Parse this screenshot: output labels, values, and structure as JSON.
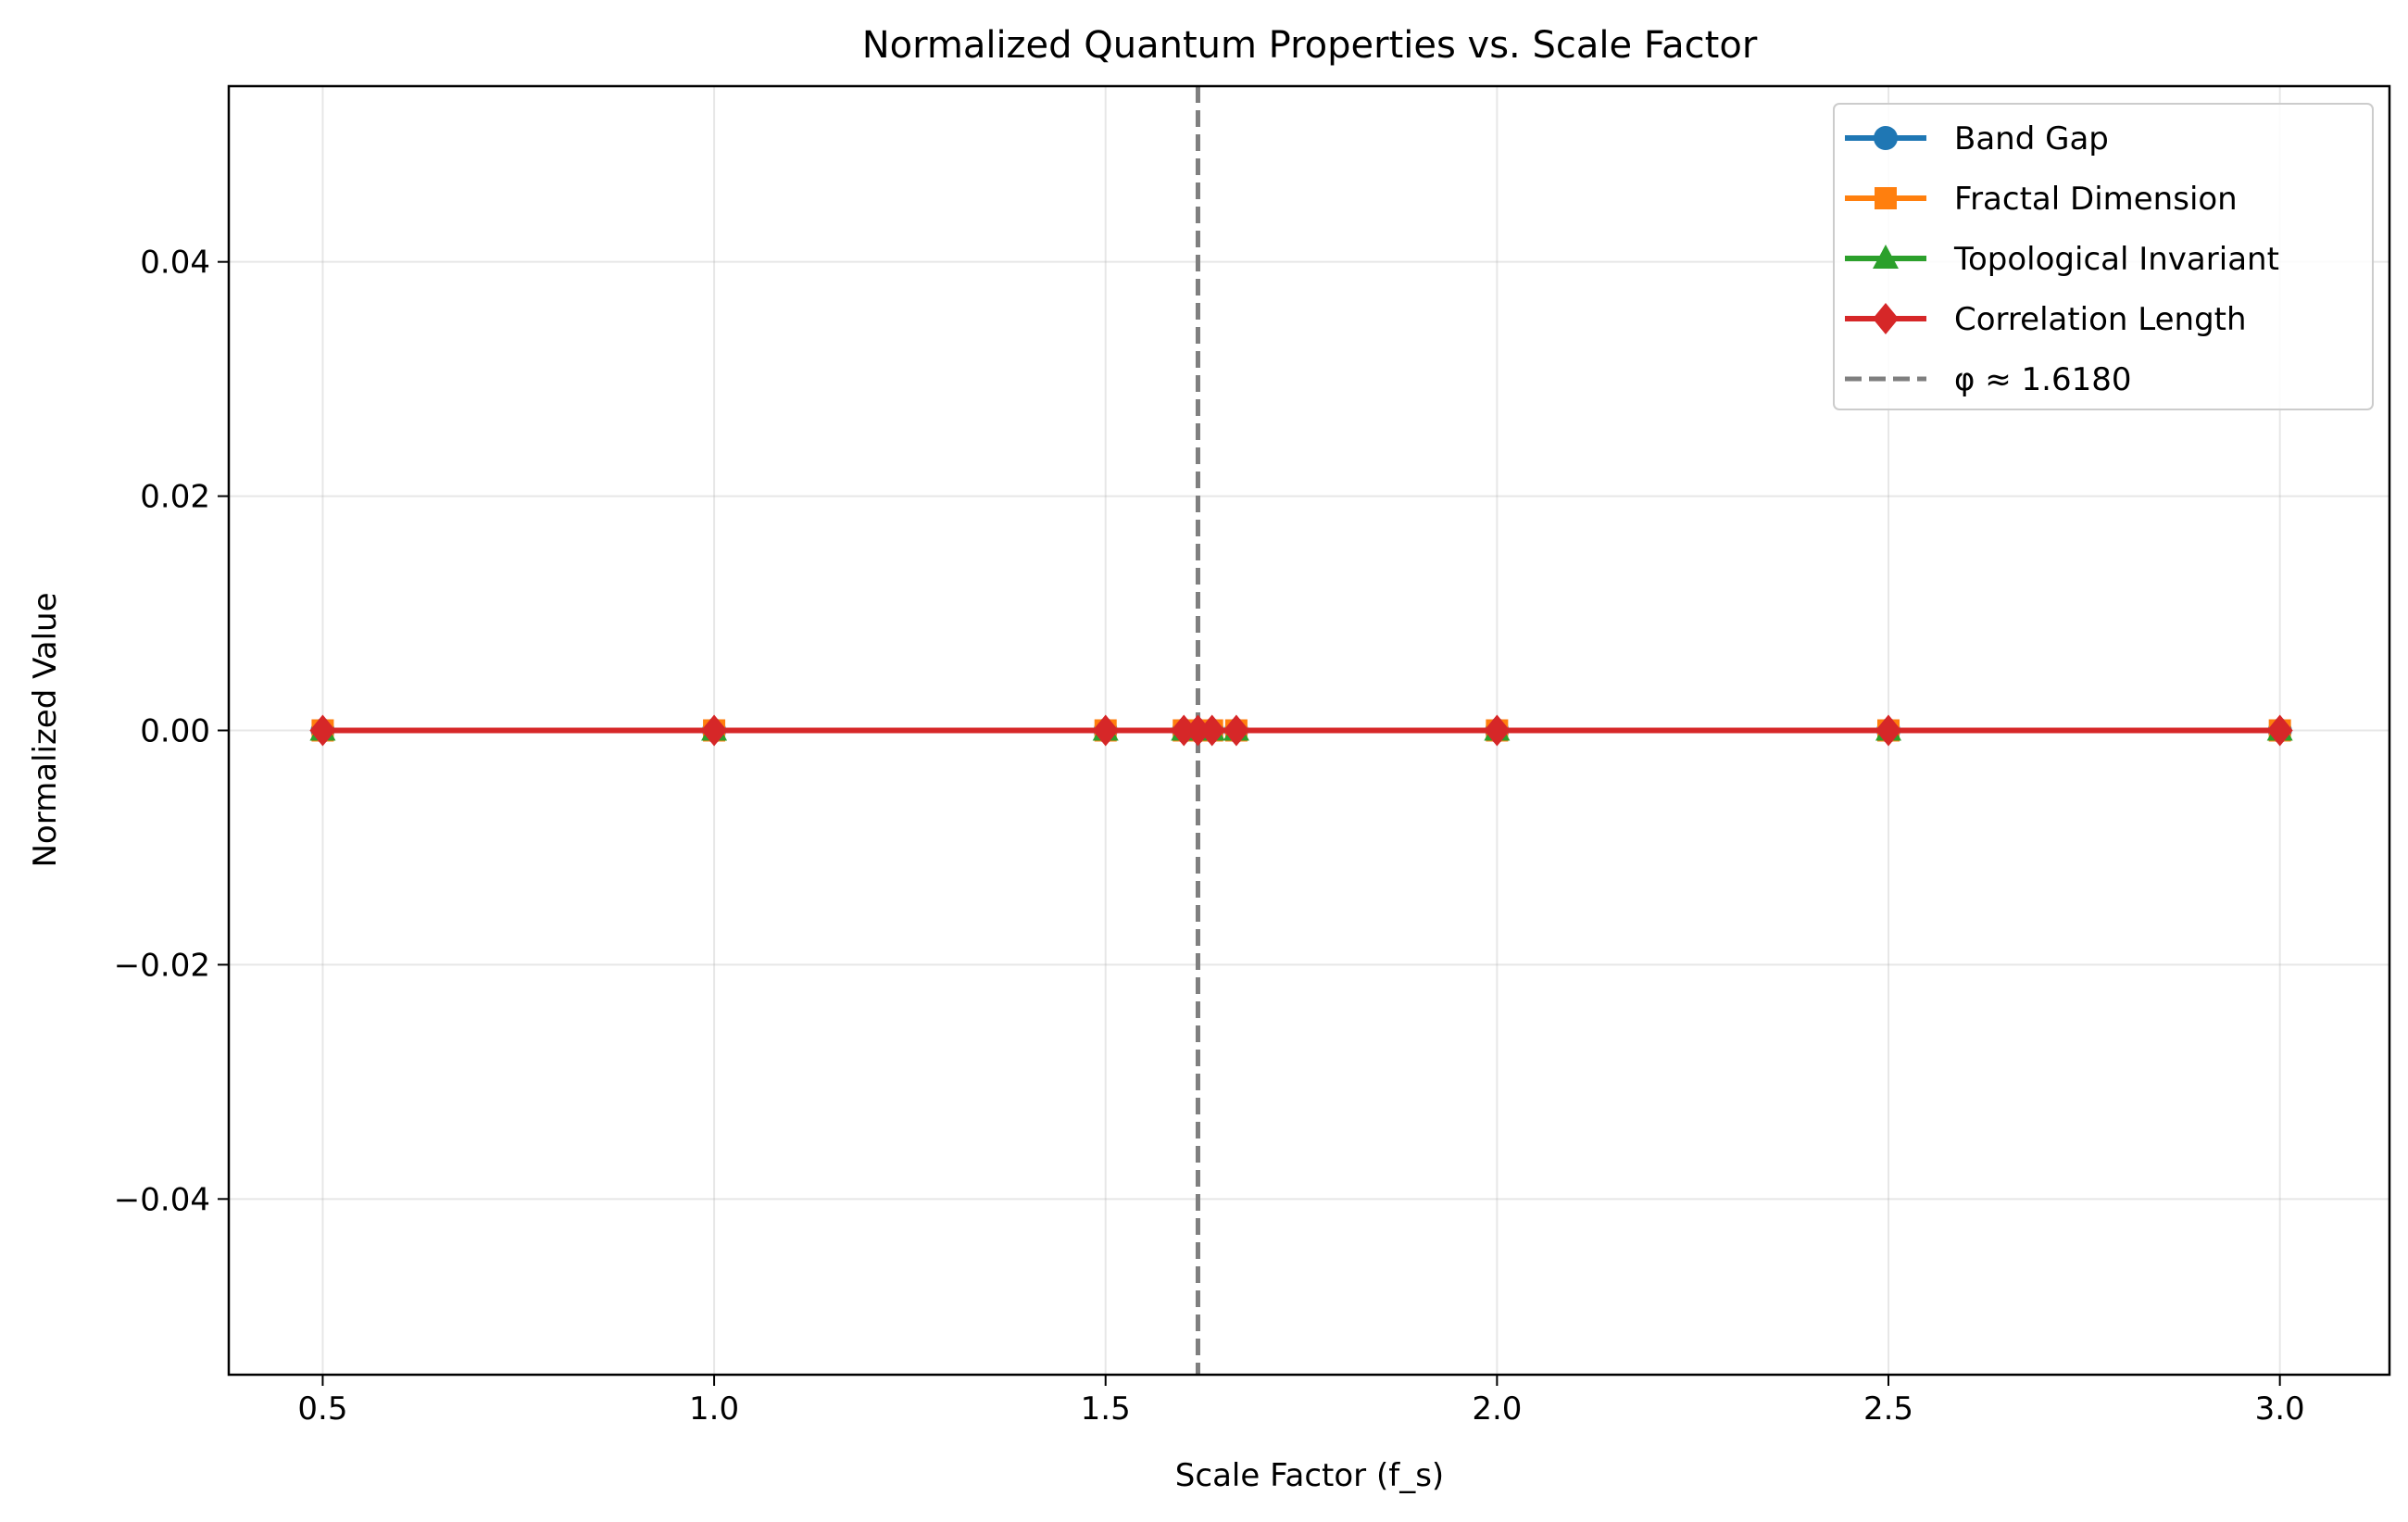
{
  "chart_data": {
    "type": "line",
    "title": "Normalized Quantum Properties vs. Scale Factor",
    "xlabel": "Scale Factor (f_s)",
    "ylabel": "Normalized Value",
    "xlim": [
      0.38,
      3.14
    ],
    "ylim": [
      -0.055,
      0.055
    ],
    "x_ticks": [
      0.5,
      1.0,
      1.5,
      2.0,
      2.5,
      3.0
    ],
    "x_tick_labels": [
      "0.5",
      "1.0",
      "1.5",
      "2.0",
      "2.5",
      "3.0"
    ],
    "y_ticks": [
      -0.04,
      -0.02,
      0.0,
      0.02,
      0.04
    ],
    "y_tick_labels": [
      "−0.04",
      "−0.02",
      "0.00",
      "0.02",
      "0.04"
    ],
    "grid": true,
    "legend_position": "top-right",
    "x": [
      0.5,
      1.0,
      1.5,
      1.6,
      1.618,
      1.636,
      1.667,
      2.0,
      2.5,
      3.0
    ],
    "series": [
      {
        "name": "Band Gap",
        "color": "#1f77b4",
        "marker": "circle",
        "values": [
          0,
          0,
          0,
          0,
          0,
          0,
          0,
          0,
          0,
          0
        ]
      },
      {
        "name": "Fractal Dimension",
        "color": "#ff7f0e",
        "marker": "square",
        "values": [
          0,
          0,
          0,
          0,
          0,
          0,
          0,
          0,
          0,
          0
        ]
      },
      {
        "name": "Topological Invariant",
        "color": "#2ca02c",
        "marker": "triangle",
        "values": [
          0,
          0,
          0,
          0,
          0,
          0,
          0,
          0,
          0,
          0
        ]
      },
      {
        "name": "Correlation Length",
        "color": "#d62728",
        "marker": "diamond",
        "values": [
          0,
          0,
          0,
          0,
          0,
          0,
          0,
          0,
          0,
          0
        ]
      }
    ],
    "reference_line": {
      "orientation": "vertical",
      "x": 1.618,
      "label": "φ ≈ 1.6180",
      "color": "#7f7f7f",
      "style": "dashed"
    }
  }
}
